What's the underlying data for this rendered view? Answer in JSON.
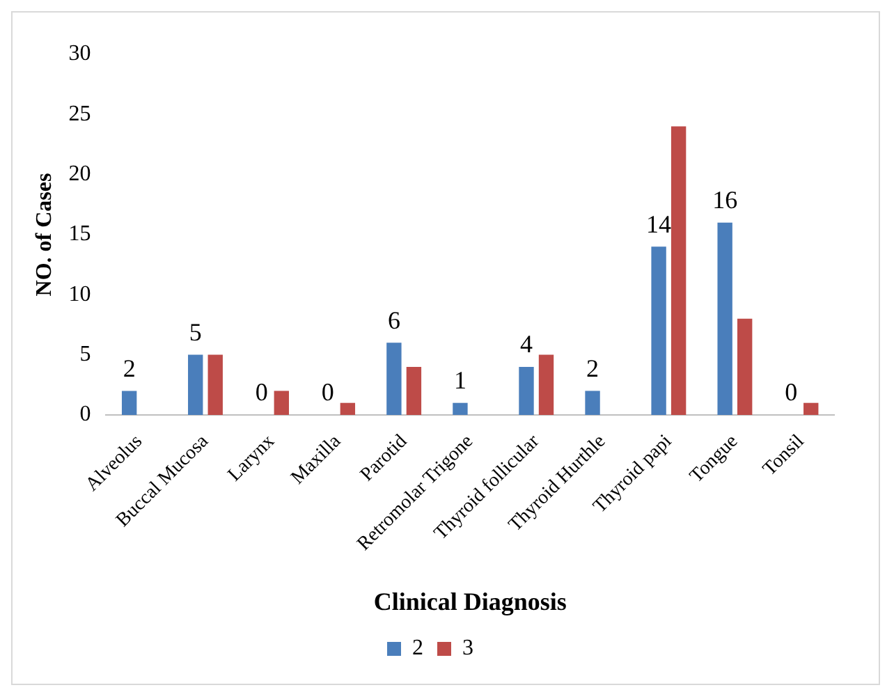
{
  "chart_data": {
    "type": "bar",
    "xlabel": "Clinical Diagnosis",
    "ylabel": "NO. of Cases",
    "categories": [
      "Alveolus",
      "Buccal Mucosa",
      "Larynx",
      "Maxilla",
      "Parotid",
      "Retromolar Trigone",
      "Thyroid follicular",
      "Thyroid Hurthle",
      "Thyroid papi",
      "Tongue",
      "Tonsil"
    ],
    "series": [
      {
        "name": "2",
        "color": "#4a7ebb",
        "values": [
          2,
          5,
          0,
          0,
          6,
          1,
          4,
          2,
          14,
          16,
          0
        ],
        "value_labels": [
          "2",
          "5",
          "0",
          "0",
          "6",
          "1",
          "4",
          "2",
          "14",
          "16",
          "0"
        ]
      },
      {
        "name": "3",
        "color": "#be4b48",
        "values": [
          0,
          5,
          2,
          1,
          4,
          0,
          5,
          0,
          24,
          8,
          1
        ]
      }
    ],
    "ylim": [
      0,
      30
    ],
    "yticks": [
      0,
      5,
      10,
      15,
      20,
      25,
      30
    ],
    "grid": false,
    "legend": "bottom"
  }
}
